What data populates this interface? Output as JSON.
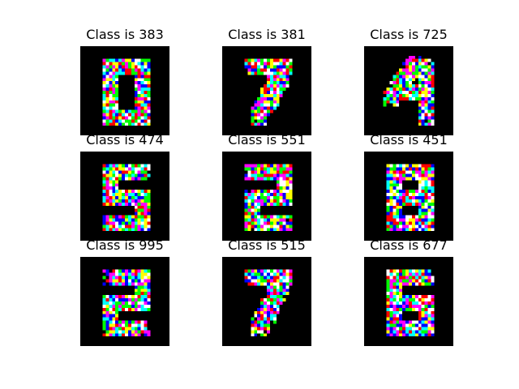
{
  "figure": {
    "background": "#ffffff",
    "image_background": "#000000",
    "pixel_colors": [
      "#ff0000",
      "#00ff00",
      "#0000ff",
      "#ffff00",
      "#ff00ff",
      "#00ffff",
      "#ffffff"
    ],
    "grid": {
      "rows": 3,
      "cols": 3
    },
    "panels": [
      {
        "title": "Class is 383",
        "digit_depicted": "0"
      },
      {
        "title": "Class is 381",
        "digit_depicted": "7"
      },
      {
        "title": "Class is 725",
        "digit_depicted": "4"
      },
      {
        "title": "Class is 474",
        "digit_depicted": "5"
      },
      {
        "title": "Class is 551",
        "digit_depicted": "2"
      },
      {
        "title": "Class is 451",
        "digit_depicted": "8"
      },
      {
        "title": "Class is 995",
        "digit_depicted": "2"
      },
      {
        "title": "Class is 515",
        "digit_depicted": "7"
      },
      {
        "title": "Class is 677",
        "digit_depicted": "6"
      }
    ]
  }
}
